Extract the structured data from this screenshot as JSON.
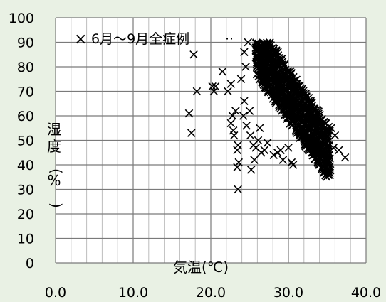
{
  "chart_data": {
    "type": "scatter",
    "title": "",
    "xlabel": "気温(℃)",
    "ylabel": "湿度(%)",
    "xlim": [
      0,
      40
    ],
    "ylim": [
      0,
      100
    ],
    "x_ticks": [
      "0.0",
      "10.0",
      "20.0",
      "30.0",
      "40.0"
    ],
    "y_ticks": [
      "0",
      "10",
      "20",
      "30",
      "40",
      "50",
      "60",
      "70",
      "80",
      "90",
      "100"
    ],
    "grid": true,
    "legend_position": "top-left",
    "marker": "×",
    "colors": {
      "background": "#e9f1e4",
      "plot_area": "#ffffff",
      "grid": "#808080",
      "marker": "#000000"
    },
    "series": [
      {
        "name": "6月～9月全症例",
        "points": [
          [
            17.8,
            85
          ],
          [
            18.2,
            70
          ],
          [
            17.2,
            61
          ],
          [
            17.5,
            53
          ],
          [
            20.2,
            72
          ],
          [
            20.4,
            70
          ],
          [
            20.6,
            72
          ],
          [
            21.5,
            78
          ],
          [
            22.2,
            70
          ],
          [
            22.6,
            73
          ],
          [
            23.2,
            62
          ],
          [
            22.8,
            60
          ],
          [
            22.6,
            57
          ],
          [
            22.9,
            54
          ],
          [
            23.0,
            52
          ],
          [
            23.5,
            48
          ],
          [
            23.4,
            46
          ],
          [
            23.6,
            41
          ],
          [
            23.4,
            39
          ],
          [
            23.5,
            30
          ],
          [
            24.2,
            60
          ],
          [
            24.6,
            56
          ],
          [
            25.1,
            52
          ],
          [
            25.5,
            48
          ],
          [
            25.6,
            42
          ],
          [
            25.2,
            38
          ],
          [
            25.0,
            62
          ],
          [
            24.3,
            66
          ],
          [
            23.9,
            75
          ],
          [
            24.5,
            80
          ],
          [
            24.3,
            86
          ],
          [
            24.8,
            90
          ],
          [
            25.8,
            47
          ],
          [
            26.1,
            50
          ],
          [
            26.5,
            45
          ],
          [
            26.3,
            55
          ],
          [
            26.9,
            46
          ],
          [
            27.3,
            49
          ],
          [
            28.1,
            44
          ],
          [
            28.6,
            45
          ],
          [
            29.0,
            46
          ],
          [
            29.3,
            42
          ],
          [
            30.0,
            47
          ],
          [
            30.4,
            41
          ],
          [
            30.6,
            40
          ],
          [
            33.0,
            45
          ],
          [
            34.0,
            40
          ],
          [
            34.5,
            38
          ],
          [
            35.0,
            41
          ],
          [
            35.2,
            44
          ],
          [
            35.8,
            47
          ],
          [
            36.5,
            46
          ],
          [
            37.3,
            43
          ],
          [
            35.5,
            55
          ],
          [
            36.0,
            52
          ],
          [
            33.5,
            60
          ],
          [
            34.2,
            58
          ]
        ]
      }
    ]
  }
}
